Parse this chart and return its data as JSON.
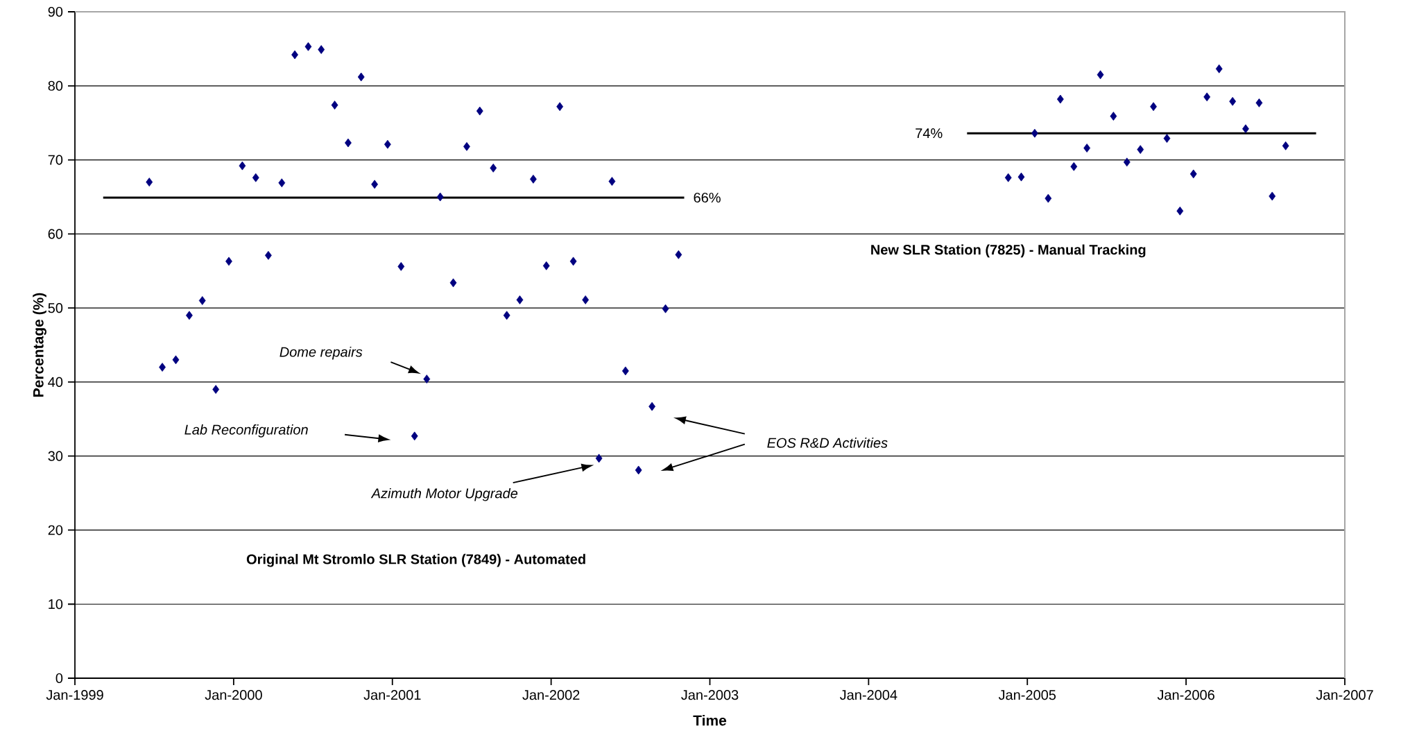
{
  "chart_data": {
    "type": "scatter",
    "xlabel": "Time",
    "ylabel": "Percentage (%)",
    "xlim": [
      "1999-01",
      "2007-01"
    ],
    "ylim": [
      0,
      90
    ],
    "xticks": [
      {
        "value": "1999-01",
        "label": "Jan-1999"
      },
      {
        "value": "2000-01",
        "label": "Jan-2000"
      },
      {
        "value": "2001-01",
        "label": "Jan-2001"
      },
      {
        "value": "2002-01",
        "label": "Jan-2002"
      },
      {
        "value": "2003-01",
        "label": "Jan-2003"
      },
      {
        "value": "2004-01",
        "label": "Jan-2004"
      },
      {
        "value": "2005-01",
        "label": "Jan-2005"
      },
      {
        "value": "2006-01",
        "label": "Jan-2006"
      },
      {
        "value": "2007-01",
        "label": "Jan-2007"
      }
    ],
    "yticks": [
      0,
      10,
      20,
      30,
      40,
      50,
      60,
      70,
      80,
      90
    ],
    "grid": "y",
    "marker": "diamond",
    "series": [
      {
        "color": "#000080",
        "x": [
          "1999-06-21",
          "1999-07-21",
          "1999-08-21",
          "1999-09-21",
          "1999-10-21",
          "1999-11-21",
          "1999-12-21",
          "2000-01-21",
          "2000-02-21",
          "2000-03-21",
          "2000-04-21",
          "2000-05-21",
          "2000-06-21",
          "2000-07-21",
          "2000-08-21",
          "2000-09-21",
          "2000-10-21",
          "2000-11-21",
          "2000-12-21",
          "2001-01-21",
          "2001-02-21",
          "2001-03-21",
          "2001-04-21",
          "2001-05-21",
          "2001-06-21",
          "2001-07-21",
          "2001-08-21",
          "2001-09-21",
          "2001-10-21",
          "2001-11-21",
          "2001-12-21",
          "2002-01-21",
          "2002-02-21",
          "2002-03-21",
          "2002-04-21",
          "2002-05-21",
          "2002-06-21",
          "2002-07-21",
          "2002-08-21",
          "2002-09-21",
          "2002-10-21"
        ],
        "values": [
          67,
          42,
          43,
          49,
          51,
          39,
          56.3,
          69.2,
          67.6,
          57.1,
          66.9,
          84.2,
          85.3,
          84.9,
          77.4,
          72.3,
          81.2,
          66.7,
          72.1,
          55.6,
          32.7,
          40.4,
          65,
          53.4,
          71.8,
          76.6,
          68.9,
          49,
          51.1,
          67.4,
          55.7,
          77.2,
          56.3,
          51.1,
          29.7,
          67.1,
          41.5,
          28.1,
          36.7,
          49.9,
          57.2
        ]
      },
      {
        "color": "#000080",
        "x": [
          "2004-11-18",
          "2004-12-18",
          "2005-01-18",
          "2005-02-18",
          "2005-03-18",
          "2005-04-18",
          "2005-05-18",
          "2005-06-18",
          "2005-07-18",
          "2005-08-18",
          "2005-09-18",
          "2005-10-18",
          "2005-11-18",
          "2005-12-18",
          "2006-01-18",
          "2006-02-18",
          "2006-03-18",
          "2006-04-18",
          "2006-05-18",
          "2006-06-18",
          "2006-07-18",
          "2006-08-18"
        ],
        "values": [
          67.6,
          67.7,
          73.6,
          64.8,
          78.2,
          69.1,
          71.6,
          81.5,
          75.9,
          69.7,
          71.4,
          77.2,
          72.9,
          63.1,
          68.1,
          78.5,
          82.3,
          77.9,
          74.2,
          77.7,
          65.1,
          71.9
        ]
      },
      {
        "type": "line",
        "marker": "none",
        "color": "#000000",
        "x": [
          "1999-03-07",
          "2002-11-03"
        ],
        "values": [
          64.9,
          64.9
        ]
      },
      {
        "type": "line",
        "marker": "none",
        "color": "#000000",
        "x": [
          "2004-08-15",
          "2006-10-27"
        ],
        "values": [
          73.6,
          73.6
        ]
      }
    ],
    "annotations": [
      "Dome repairs",
      "Lab Reconfiguration",
      "Azimuth Motor Upgrade",
      "EOS R&D Activities",
      {
        "text": "66%",
        "x": "2002-11-03",
        "y": 64.9
      },
      {
        "text": "74%",
        "x": "2004-08-15",
        "y": 73.6
      },
      "Original Mt Stromlo SLR Station (7849) - Automated",
      "New SLR Station (7825) - Manual Tracking"
    ]
  }
}
